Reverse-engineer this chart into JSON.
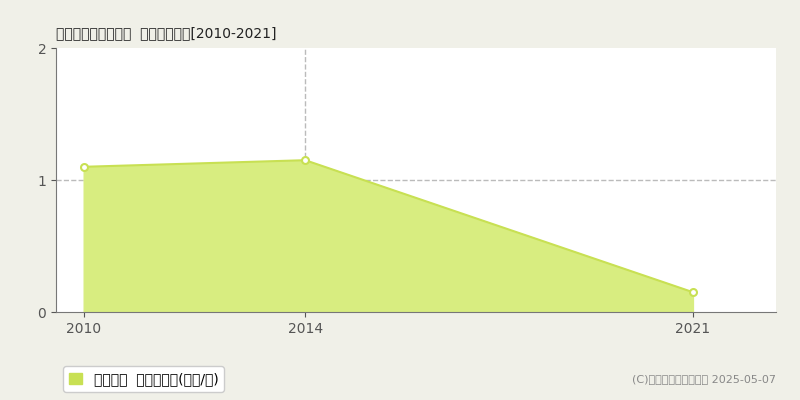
{
  "title": "国頭郡伊江村西江上  土地価格推移[2010-2021]",
  "years": [
    2010,
    2014,
    2021
  ],
  "values": [
    1.1,
    1.15,
    0.15
  ],
  "line_color": "#c8e053",
  "fill_color": "#d8ed80",
  "marker_color": "#ffffff",
  "marker_edge_color": "#c8e053",
  "dashed_vline_x": 2014,
  "dashed_hline_y": 1.0,
  "dashed_color": "#bbbbbb",
  "xlim": [
    2009.5,
    2022.5
  ],
  "ylim": [
    0,
    2
  ],
  "yticks": [
    0,
    1,
    2
  ],
  "xticks": [
    2010,
    2014,
    2021
  ],
  "legend_label": "土地価格  平均坪単価(万円/坪)",
  "copyright_text": "(C)土地価格ドットコム 2025-05-07",
  "bg_color": "#f0f0e8",
  "plot_bg_color": "#ffffff",
  "title_fontsize": 13,
  "tick_fontsize": 10,
  "legend_fontsize": 10,
  "copyright_fontsize": 8,
  "legend_marker_color": "#c8e053"
}
